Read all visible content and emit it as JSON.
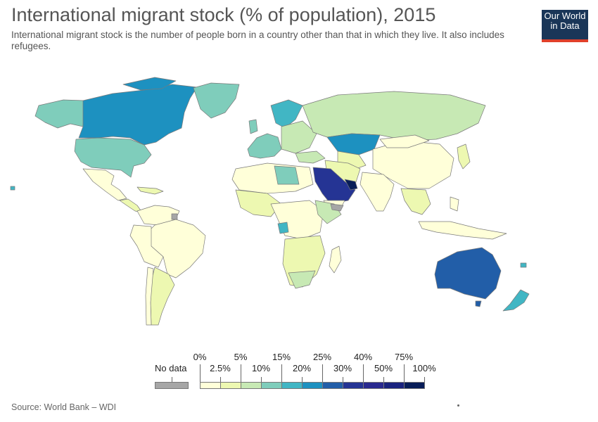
{
  "header": {
    "title": "International migrant stock (% of population), 2015",
    "subtitle": "International migrant stock is the number of people born in a country other than that in which they live. It also includes refugees."
  },
  "logo": {
    "line1": "Our World",
    "line2": "in Data",
    "bg": "#1a3658",
    "accent": "#e0402a"
  },
  "legend": {
    "nodata_label": "No data",
    "nodata_color": "#a6a6a6",
    "top_ticks": [
      "0%",
      "5%",
      "15%",
      "25%",
      "40%",
      "75%"
    ],
    "bottom_ticks": [
      "2.5%",
      "10%",
      "20%",
      "30%",
      "50%",
      "100%"
    ],
    "bins": [
      {
        "range": "0–2.5%",
        "color": "#ffffd9"
      },
      {
        "range": "2.5–5%",
        "color": "#edf8b1"
      },
      {
        "range": "5–10%",
        "color": "#c7e9b4"
      },
      {
        "range": "10–15%",
        "color": "#7fcdbb"
      },
      {
        "range": "15–20%",
        "color": "#41b6c4"
      },
      {
        "range": "20–25%",
        "color": "#1d91c0"
      },
      {
        "range": "25–30%",
        "color": "#225ea8"
      },
      {
        "range": "30–40%",
        "color": "#253494"
      },
      {
        "range": "40–50%",
        "color": "#2a2a8f"
      },
      {
        "range": "50–75%",
        "color": "#1a237e"
      },
      {
        "range": "75–100%",
        "color": "#081d58"
      }
    ]
  },
  "source": "Source: World Bank – WDI"
}
